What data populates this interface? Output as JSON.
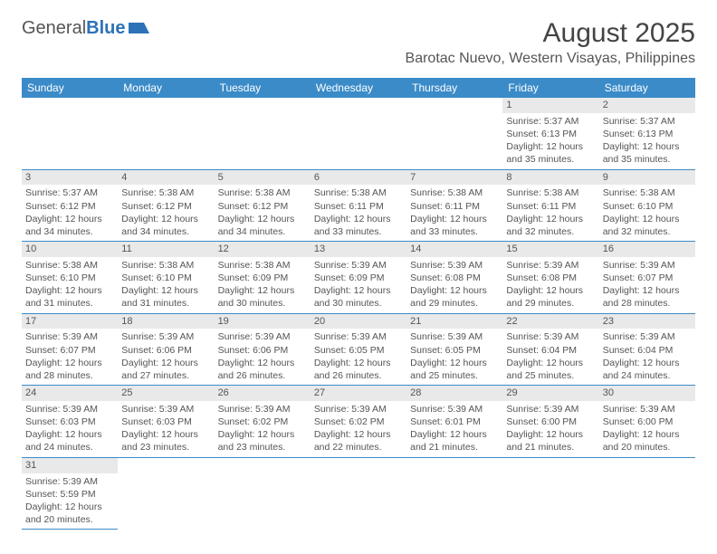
{
  "logo": {
    "part1": "General",
    "part2": "Blue"
  },
  "title": "August 2025",
  "location": "Barotac Nuevo, Western Visayas, Philippines",
  "weekdays": [
    "Sunday",
    "Monday",
    "Tuesday",
    "Wednesday",
    "Thursday",
    "Friday",
    "Saturday"
  ],
  "colors": {
    "header_bg": "#3b8bc8",
    "daynum_bg": "#e9e9e9",
    "border": "#3b8bc8",
    "text": "#555555",
    "logo_blue": "#2d72b8"
  },
  "weeks": [
    [
      null,
      null,
      null,
      null,
      null,
      {
        "n": "1",
        "sr": "Sunrise: 5:37 AM",
        "ss": "Sunset: 6:13 PM",
        "d1": "Daylight: 12 hours",
        "d2": "and 35 minutes."
      },
      {
        "n": "2",
        "sr": "Sunrise: 5:37 AM",
        "ss": "Sunset: 6:13 PM",
        "d1": "Daylight: 12 hours",
        "d2": "and 35 minutes."
      }
    ],
    [
      {
        "n": "3",
        "sr": "Sunrise: 5:37 AM",
        "ss": "Sunset: 6:12 PM",
        "d1": "Daylight: 12 hours",
        "d2": "and 34 minutes."
      },
      {
        "n": "4",
        "sr": "Sunrise: 5:38 AM",
        "ss": "Sunset: 6:12 PM",
        "d1": "Daylight: 12 hours",
        "d2": "and 34 minutes."
      },
      {
        "n": "5",
        "sr": "Sunrise: 5:38 AM",
        "ss": "Sunset: 6:12 PM",
        "d1": "Daylight: 12 hours",
        "d2": "and 34 minutes."
      },
      {
        "n": "6",
        "sr": "Sunrise: 5:38 AM",
        "ss": "Sunset: 6:11 PM",
        "d1": "Daylight: 12 hours",
        "d2": "and 33 minutes."
      },
      {
        "n": "7",
        "sr": "Sunrise: 5:38 AM",
        "ss": "Sunset: 6:11 PM",
        "d1": "Daylight: 12 hours",
        "d2": "and 33 minutes."
      },
      {
        "n": "8",
        "sr": "Sunrise: 5:38 AM",
        "ss": "Sunset: 6:11 PM",
        "d1": "Daylight: 12 hours",
        "d2": "and 32 minutes."
      },
      {
        "n": "9",
        "sr": "Sunrise: 5:38 AM",
        "ss": "Sunset: 6:10 PM",
        "d1": "Daylight: 12 hours",
        "d2": "and 32 minutes."
      }
    ],
    [
      {
        "n": "10",
        "sr": "Sunrise: 5:38 AM",
        "ss": "Sunset: 6:10 PM",
        "d1": "Daylight: 12 hours",
        "d2": "and 31 minutes."
      },
      {
        "n": "11",
        "sr": "Sunrise: 5:38 AM",
        "ss": "Sunset: 6:10 PM",
        "d1": "Daylight: 12 hours",
        "d2": "and 31 minutes."
      },
      {
        "n": "12",
        "sr": "Sunrise: 5:38 AM",
        "ss": "Sunset: 6:09 PM",
        "d1": "Daylight: 12 hours",
        "d2": "and 30 minutes."
      },
      {
        "n": "13",
        "sr": "Sunrise: 5:39 AM",
        "ss": "Sunset: 6:09 PM",
        "d1": "Daylight: 12 hours",
        "d2": "and 30 minutes."
      },
      {
        "n": "14",
        "sr": "Sunrise: 5:39 AM",
        "ss": "Sunset: 6:08 PM",
        "d1": "Daylight: 12 hours",
        "d2": "and 29 minutes."
      },
      {
        "n": "15",
        "sr": "Sunrise: 5:39 AM",
        "ss": "Sunset: 6:08 PM",
        "d1": "Daylight: 12 hours",
        "d2": "and 29 minutes."
      },
      {
        "n": "16",
        "sr": "Sunrise: 5:39 AM",
        "ss": "Sunset: 6:07 PM",
        "d1": "Daylight: 12 hours",
        "d2": "and 28 minutes."
      }
    ],
    [
      {
        "n": "17",
        "sr": "Sunrise: 5:39 AM",
        "ss": "Sunset: 6:07 PM",
        "d1": "Daylight: 12 hours",
        "d2": "and 28 minutes."
      },
      {
        "n": "18",
        "sr": "Sunrise: 5:39 AM",
        "ss": "Sunset: 6:06 PM",
        "d1": "Daylight: 12 hours",
        "d2": "and 27 minutes."
      },
      {
        "n": "19",
        "sr": "Sunrise: 5:39 AM",
        "ss": "Sunset: 6:06 PM",
        "d1": "Daylight: 12 hours",
        "d2": "and 26 minutes."
      },
      {
        "n": "20",
        "sr": "Sunrise: 5:39 AM",
        "ss": "Sunset: 6:05 PM",
        "d1": "Daylight: 12 hours",
        "d2": "and 26 minutes."
      },
      {
        "n": "21",
        "sr": "Sunrise: 5:39 AM",
        "ss": "Sunset: 6:05 PM",
        "d1": "Daylight: 12 hours",
        "d2": "and 25 minutes."
      },
      {
        "n": "22",
        "sr": "Sunrise: 5:39 AM",
        "ss": "Sunset: 6:04 PM",
        "d1": "Daylight: 12 hours",
        "d2": "and 25 minutes."
      },
      {
        "n": "23",
        "sr": "Sunrise: 5:39 AM",
        "ss": "Sunset: 6:04 PM",
        "d1": "Daylight: 12 hours",
        "d2": "and 24 minutes."
      }
    ],
    [
      {
        "n": "24",
        "sr": "Sunrise: 5:39 AM",
        "ss": "Sunset: 6:03 PM",
        "d1": "Daylight: 12 hours",
        "d2": "and 24 minutes."
      },
      {
        "n": "25",
        "sr": "Sunrise: 5:39 AM",
        "ss": "Sunset: 6:03 PM",
        "d1": "Daylight: 12 hours",
        "d2": "and 23 minutes."
      },
      {
        "n": "26",
        "sr": "Sunrise: 5:39 AM",
        "ss": "Sunset: 6:02 PM",
        "d1": "Daylight: 12 hours",
        "d2": "and 23 minutes."
      },
      {
        "n": "27",
        "sr": "Sunrise: 5:39 AM",
        "ss": "Sunset: 6:02 PM",
        "d1": "Daylight: 12 hours",
        "d2": "and 22 minutes."
      },
      {
        "n": "28",
        "sr": "Sunrise: 5:39 AM",
        "ss": "Sunset: 6:01 PM",
        "d1": "Daylight: 12 hours",
        "d2": "and 21 minutes."
      },
      {
        "n": "29",
        "sr": "Sunrise: 5:39 AM",
        "ss": "Sunset: 6:00 PM",
        "d1": "Daylight: 12 hours",
        "d2": "and 21 minutes."
      },
      {
        "n": "30",
        "sr": "Sunrise: 5:39 AM",
        "ss": "Sunset: 6:00 PM",
        "d1": "Daylight: 12 hours",
        "d2": "and 20 minutes."
      }
    ],
    [
      {
        "n": "31",
        "sr": "Sunrise: 5:39 AM",
        "ss": "Sunset: 5:59 PM",
        "d1": "Daylight: 12 hours",
        "d2": "and 20 minutes."
      },
      null,
      null,
      null,
      null,
      null,
      null
    ]
  ]
}
